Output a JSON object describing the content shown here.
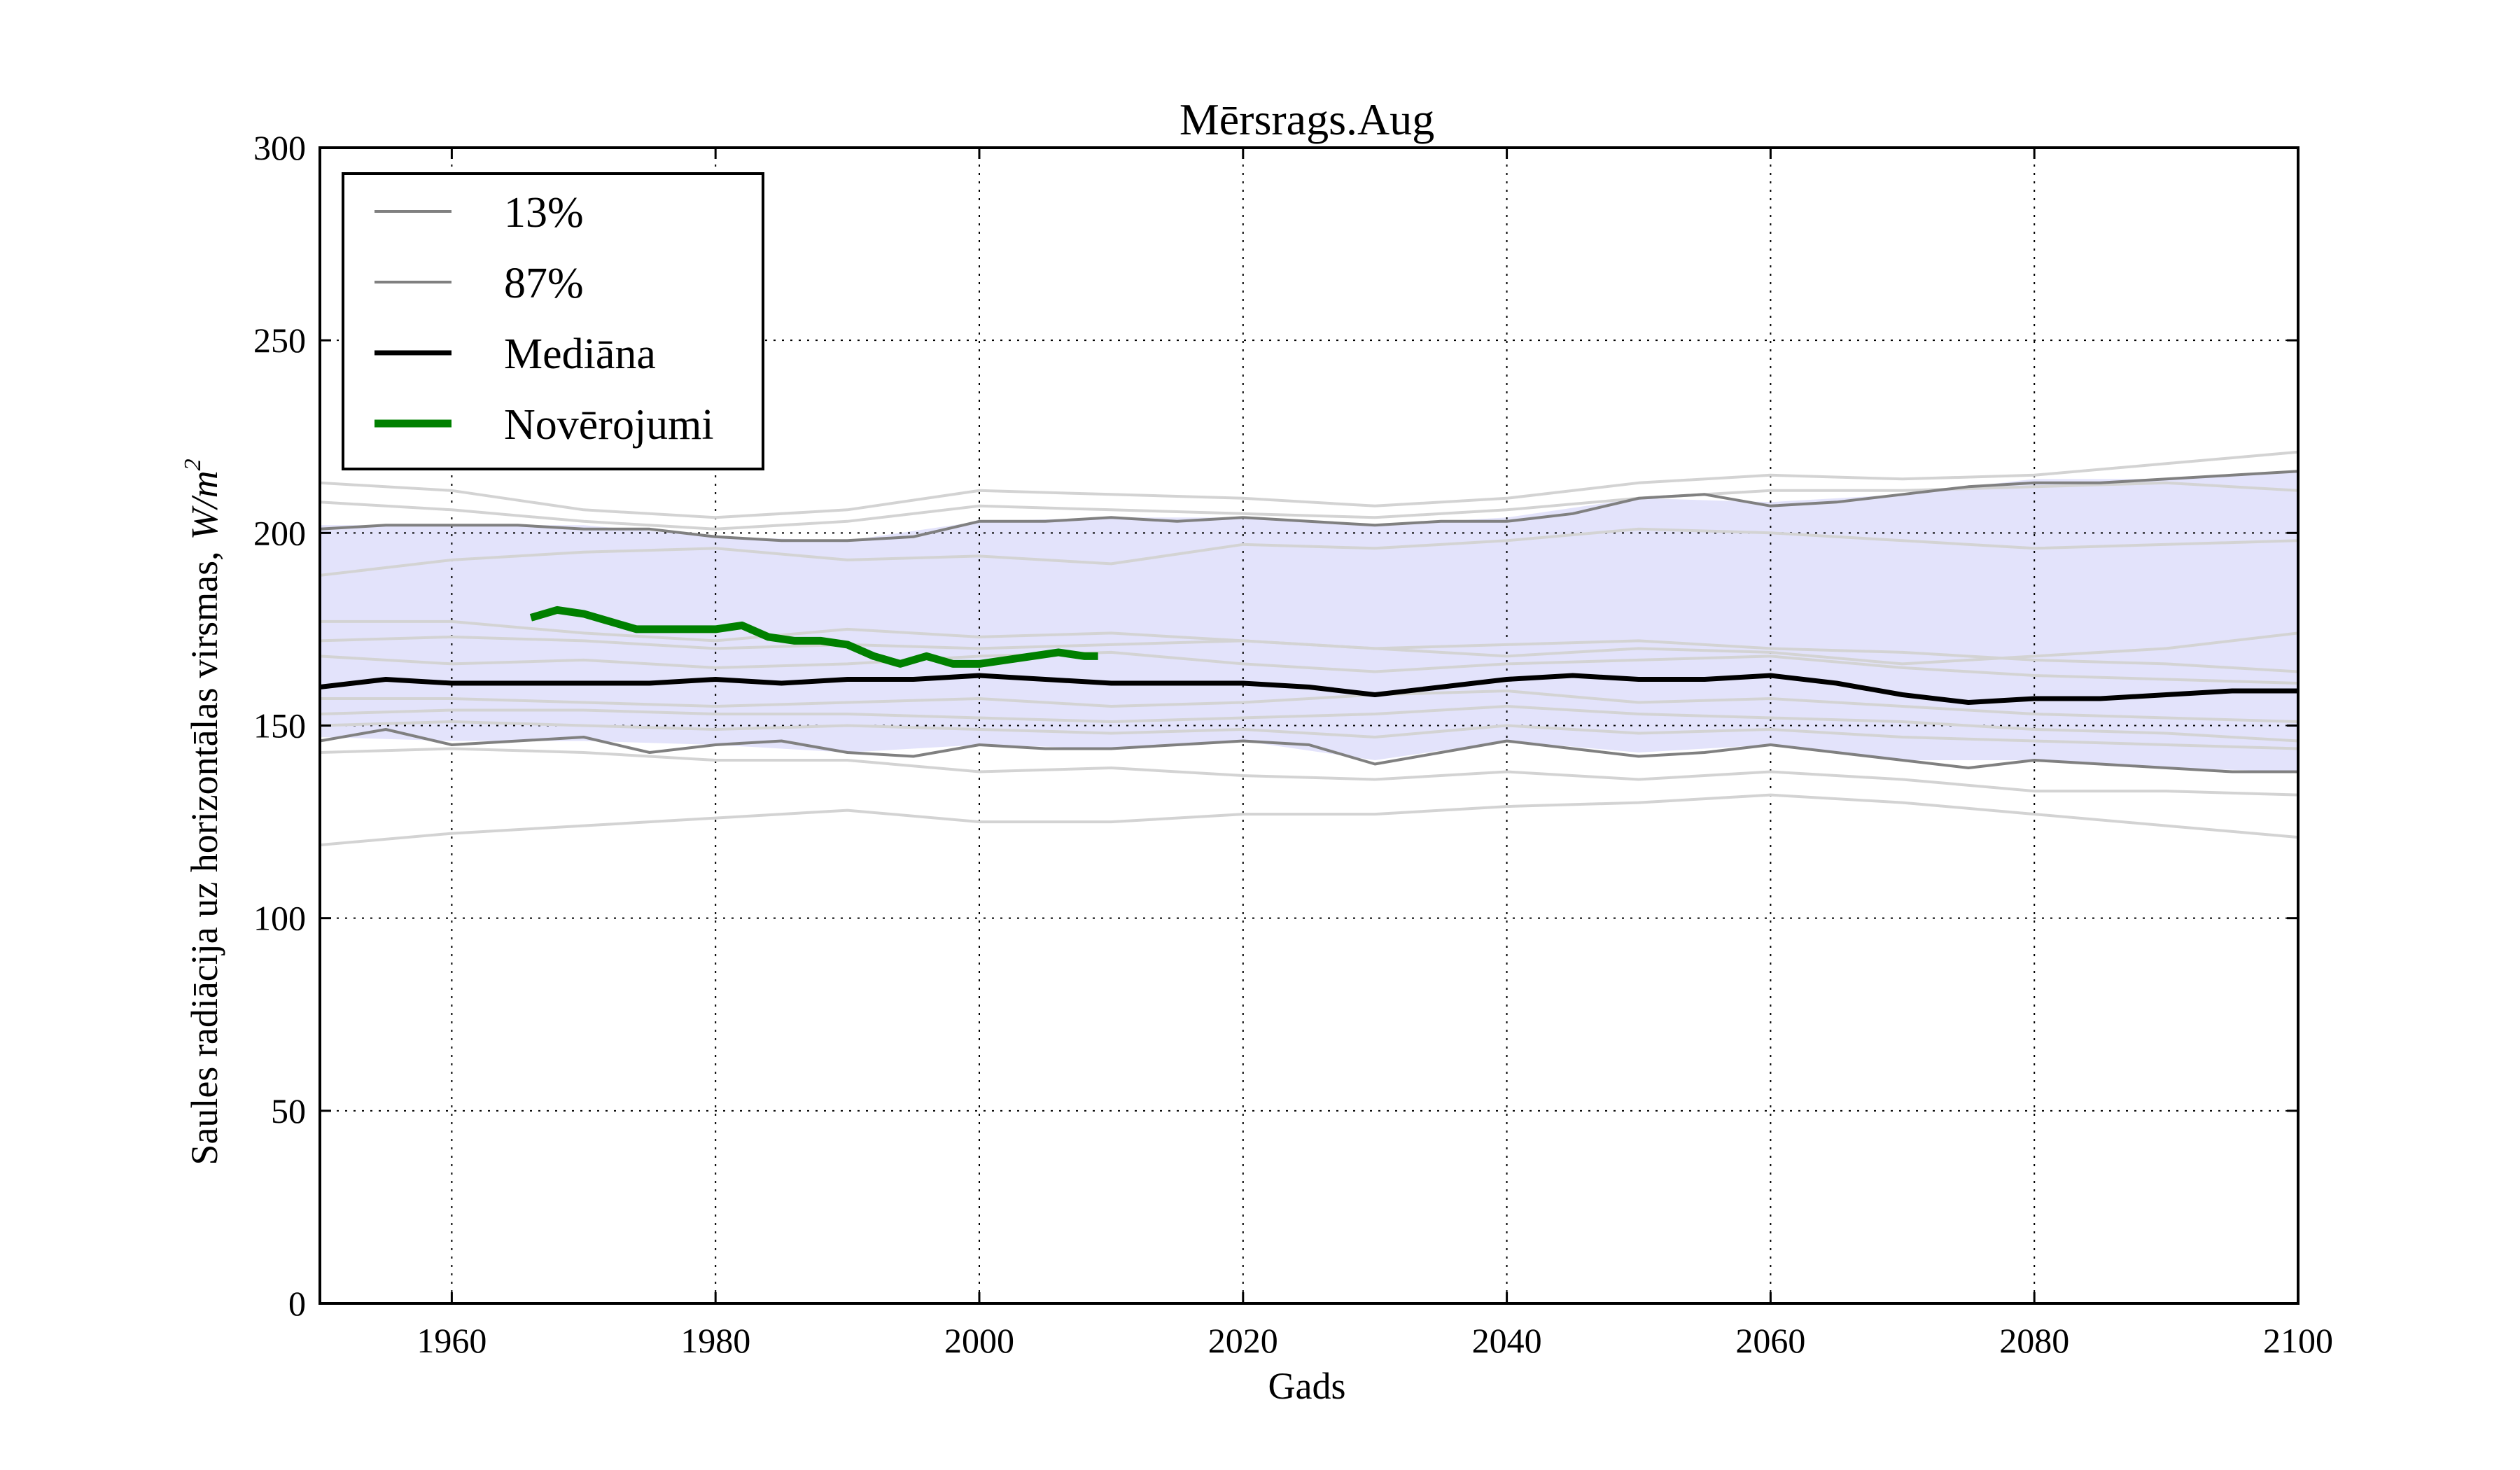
{
  "chart_data": {
    "type": "line",
    "title": "Mērsrags.Aug",
    "xlabel": "Gads",
    "ylabel": "Saules radiācija uz horizontālas virsmas,",
    "ylabel_unit_base": "W/m",
    "ylabel_unit_exp": "2",
    "xlim": [
      1950,
      2100
    ],
    "ylim": [
      0,
      300
    ],
    "xticks": [
      "1960",
      "1980",
      "2000",
      "2020",
      "2040",
      "2060",
      "2080",
      "2100"
    ],
    "yticks": [
      "0",
      "50",
      "100",
      "150",
      "200",
      "250",
      "300"
    ],
    "grid": true,
    "legend_position": "top-left",
    "colors": {
      "band": "#e3e3fb",
      "percentile": "#808080",
      "ensemble": "#d3d3d3",
      "median": "#000000",
      "observations": "#008000"
    },
    "band": {
      "x": [
        1950,
        1960,
        1970,
        1980,
        1990,
        2000,
        2010,
        2020,
        2030,
        2040,
        2050,
        2060,
        2070,
        2080,
        2090,
        2100
      ],
      "lower": [
        147,
        146,
        146,
        145,
        143,
        145,
        144,
        146,
        141,
        146,
        143,
        145,
        141,
        141,
        139,
        138
      ],
      "upper": [
        202,
        202,
        202,
        199,
        198,
        203,
        204,
        204,
        202,
        204,
        209,
        208,
        210,
        214,
        214,
        216
      ]
    },
    "ensemble": [
      {
        "x": [
          1950,
          1960,
          1970,
          1980,
          1990,
          2000,
          2010,
          2020,
          2030,
          2040,
          2050,
          2060,
          2070,
          2080,
          2090,
          2100
        ],
        "y": [
          213,
          211,
          206,
          204,
          206,
          211,
          210,
          209,
          207,
          209,
          213,
          215,
          214,
          215,
          218,
          221
        ]
      },
      {
        "x": [
          1950,
          1960,
          1970,
          1980,
          1990,
          2000,
          2010,
          2020,
          2030,
          2040,
          2050,
          2060,
          2070,
          2080,
          2090,
          2100
        ],
        "y": [
          208,
          206,
          203,
          201,
          203,
          207,
          206,
          205,
          204,
          206,
          209,
          211,
          211,
          212,
          213,
          211
        ]
      },
      {
        "x": [
          1950,
          1960,
          1970,
          1980,
          1990,
          2000,
          2010,
          2020,
          2030,
          2040,
          2050,
          2060,
          2070,
          2080,
          2090,
          2100
        ],
        "y": [
          189,
          193,
          195,
          196,
          193,
          194,
          192,
          197,
          196,
          198,
          201,
          200,
          198,
          196,
          197,
          198
        ]
      },
      {
        "x": [
          1950,
          1960,
          1970,
          1980,
          1990,
          2000,
          2010,
          2020,
          2030,
          2040,
          2050,
          2060,
          2070,
          2080,
          2090,
          2100
        ],
        "y": [
          177,
          177,
          174,
          172,
          175,
          173,
          174,
          172,
          170,
          168,
          170,
          169,
          166,
          168,
          170,
          174
        ]
      },
      {
        "x": [
          1950,
          1960,
          1970,
          1980,
          1990,
          2000,
          2010,
          2020,
          2030,
          2040,
          2050,
          2060,
          2070,
          2080,
          2090,
          2100
        ],
        "y": [
          172,
          173,
          172,
          170,
          171,
          170,
          171,
          172,
          170,
          171,
          172,
          170,
          169,
          167,
          166,
          164
        ]
      },
      {
        "x": [
          1950,
          1960,
          1970,
          1980,
          1990,
          2000,
          2010,
          2020,
          2030,
          2040,
          2050,
          2060,
          2070,
          2080,
          2090,
          2100
        ],
        "y": [
          168,
          166,
          167,
          165,
          166,
          168,
          169,
          166,
          164,
          166,
          167,
          168,
          165,
          163,
          162,
          161
        ]
      },
      {
        "x": [
          1950,
          1960,
          1970,
          1980,
          1990,
          2000,
          2010,
          2020,
          2030,
          2040,
          2050,
          2060,
          2070,
          2080,
          2090,
          2100
        ],
        "y": [
          157,
          157,
          156,
          155,
          156,
          157,
          155,
          156,
          158,
          159,
          156,
          157,
          155,
          153,
          152,
          151
        ]
      },
      {
        "x": [
          1950,
          1960,
          1970,
          1980,
          1990,
          2000,
          2010,
          2020,
          2030,
          2040,
          2050,
          2060,
          2070,
          2080,
          2090,
          2100
        ],
        "y": [
          153,
          154,
          154,
          153,
          153,
          152,
          151,
          152,
          153,
          155,
          153,
          152,
          151,
          149,
          148,
          146
        ]
      },
      {
        "x": [
          1950,
          1960,
          1970,
          1980,
          1990,
          2000,
          2010,
          2020,
          2030,
          2040,
          2050,
          2060,
          2070,
          2080,
          2090,
          2100
        ],
        "y": [
          150,
          151,
          150,
          149,
          150,
          149,
          148,
          149,
          147,
          150,
          148,
          149,
          147,
          146,
          145,
          144
        ]
      },
      {
        "x": [
          1950,
          1960,
          1970,
          1980,
          1990,
          2000,
          2010,
          2020,
          2030,
          2040,
          2050,
          2060,
          2070,
          2080,
          2090,
          2100
        ],
        "y": [
          143,
          144,
          143,
          141,
          141,
          138,
          139,
          137,
          136,
          138,
          136,
          138,
          136,
          133,
          133,
          132
        ]
      },
      {
        "x": [
          1950,
          1960,
          1970,
          1980,
          1990,
          2000,
          2010,
          2020,
          2030,
          2040,
          2050,
          2060,
          2070,
          2080,
          2090,
          2100
        ],
        "y": [
          119,
          122,
          124,
          126,
          128,
          125,
          125,
          127,
          127,
          129,
          130,
          132,
          130,
          127,
          124,
          121
        ]
      }
    ],
    "series": [
      {
        "name": "13%",
        "style": "percentile",
        "x": [
          1950,
          1955,
          1960,
          1965,
          1970,
          1975,
          1980,
          1985,
          1990,
          1995,
          2000,
          2005,
          2010,
          2015,
          2020,
          2025,
          2030,
          2035,
          2040,
          2045,
          2050,
          2055,
          2060,
          2065,
          2070,
          2075,
          2080,
          2085,
          2090,
          2095,
          2100
        ],
        "y": [
          146,
          149,
          145,
          146,
          147,
          143,
          145,
          146,
          143,
          142,
          145,
          144,
          144,
          145,
          146,
          145,
          140,
          143,
          146,
          144,
          142,
          143,
          145,
          143,
          141,
          139,
          141,
          140,
          139,
          138,
          138
        ]
      },
      {
        "name": "87%",
        "style": "percentile",
        "x": [
          1950,
          1955,
          1960,
          1965,
          1970,
          1975,
          1980,
          1985,
          1990,
          1995,
          2000,
          2005,
          2010,
          2015,
          2020,
          2025,
          2030,
          2035,
          2040,
          2045,
          2050,
          2055,
          2060,
          2065,
          2070,
          2075,
          2080,
          2085,
          2090,
          2095,
          2100
        ],
        "y": [
          201,
          202,
          202,
          202,
          201,
          201,
          199,
          198,
          198,
          199,
          203,
          203,
          204,
          203,
          204,
          203,
          202,
          203,
          203,
          205,
          209,
          210,
          207,
          208,
          210,
          212,
          213,
          213,
          214,
          215,
          216
        ]
      },
      {
        "name": "Mediāna",
        "style": "median",
        "x": [
          1950,
          1955,
          1960,
          1965,
          1970,
          1975,
          1980,
          1985,
          1990,
          1995,
          2000,
          2005,
          2010,
          2015,
          2020,
          2025,
          2030,
          2035,
          2040,
          2045,
          2050,
          2055,
          2060,
          2065,
          2070,
          2075,
          2080,
          2085,
          2090,
          2095,
          2100
        ],
        "y": [
          160,
          162,
          161,
          161,
          161,
          161,
          162,
          161,
          162,
          162,
          163,
          162,
          161,
          161,
          161,
          160,
          158,
          160,
          162,
          163,
          162,
          162,
          163,
          161,
          158,
          156,
          157,
          157,
          158,
          159,
          159
        ]
      },
      {
        "name": "Novērojumi",
        "style": "observations",
        "x": [
          1966,
          1968,
          1970,
          1972,
          1974,
          1976,
          1978,
          1980,
          1982,
          1984,
          1986,
          1988,
          1990,
          1992,
          1994,
          1996,
          1998,
          2000,
          2002,
          2004,
          2006,
          2008,
          2009
        ],
        "y": [
          178,
          180,
          179,
          177,
          175,
          175,
          175,
          175,
          176,
          173,
          172,
          172,
          171,
          168,
          166,
          168,
          166,
          166,
          167,
          168,
          169,
          168,
          168
        ]
      }
    ]
  }
}
